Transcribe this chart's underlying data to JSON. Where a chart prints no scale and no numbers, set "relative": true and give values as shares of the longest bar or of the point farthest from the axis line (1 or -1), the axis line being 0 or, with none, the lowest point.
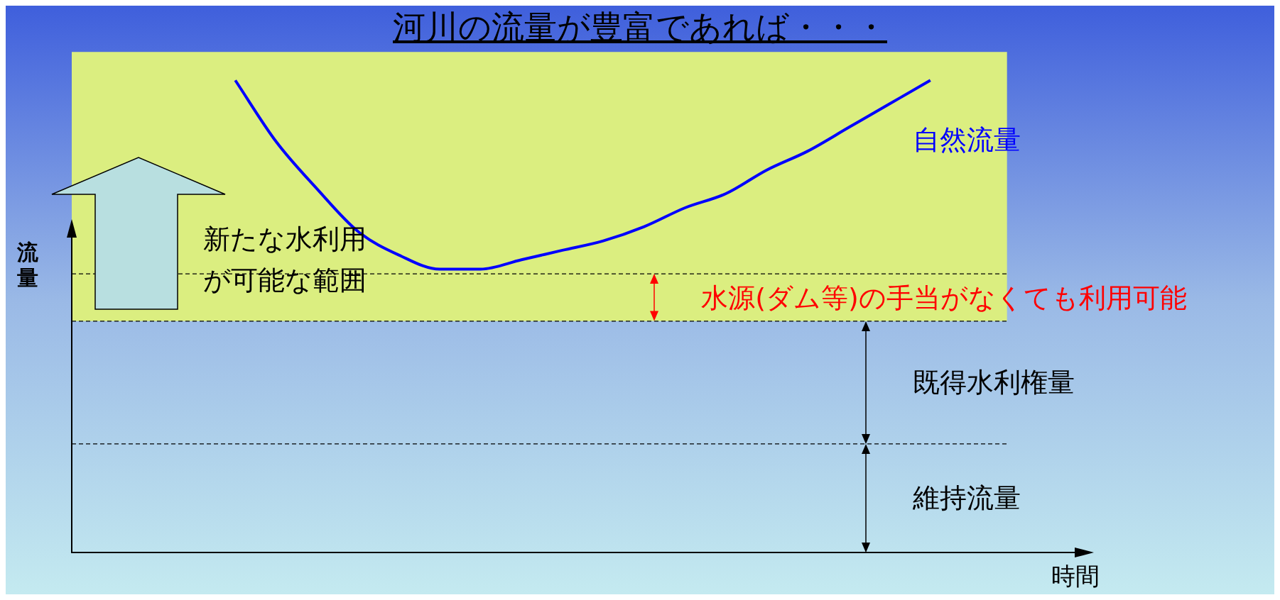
{
  "chart_data": {
    "type": "line",
    "title": "河川の流量が豊富であれば・・・",
    "xlabel": "時間",
    "ylabel": "流量",
    "relative": true,
    "categories": [
      null,
      null,
      null,
      null,
      null,
      null,
      null,
      null,
      null,
      null,
      null,
      null,
      null,
      null,
      null,
      null,
      null,
      null,
      null,
      null,
      null,
      null,
      null,
      null,
      null,
      null
    ],
    "series": [
      {
        "name": "自然流量",
        "color": "#0000ff",
        "values": [
          null,
          null,
          null,
          null,
          1,
          0.87,
          0.77,
          0.68,
          0.63,
          0.6,
          0.6,
          0.62,
          0.64,
          0.66,
          0.69,
          0.73,
          0.76,
          0.81,
          0.85,
          0.9,
          0.95,
          1,
          null,
          null,
          null,
          null
        ]
      }
    ],
    "bands": [
      {
        "axis": "y",
        "from": 0.49,
        "to": 1.06,
        "color": "#dbee80"
      }
    ],
    "ref_lines": [
      {
        "axis": "y",
        "value": 0.59,
        "line_style": "dashed"
      },
      {
        "axis": "y",
        "value": 0.49,
        "line_style": "dashed"
      },
      {
        "axis": "y",
        "value": 0.23,
        "line_style": "dashed"
      }
    ],
    "annotations": [
      "新たな水利用が可能な範囲",
      "水源(ダム等)の手当がなくても利用可能",
      "既得水利権量",
      "維持流量"
    ],
    "marker": "none",
    "line_style": "solid",
    "legend": false
  }
}
